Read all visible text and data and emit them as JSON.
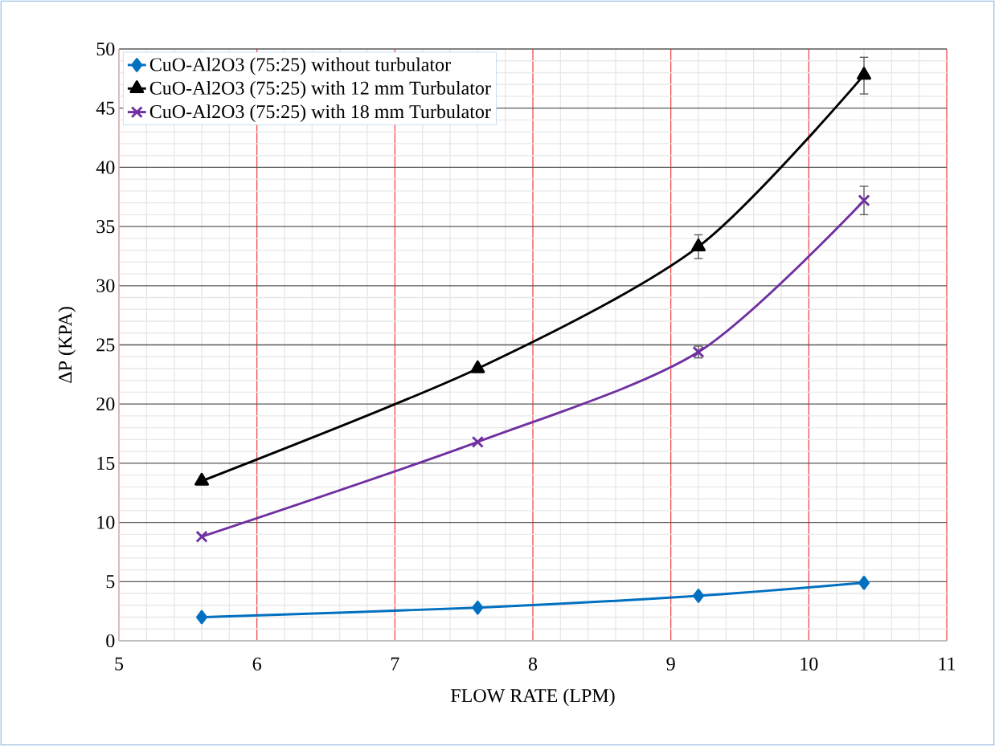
{
  "chart_data": {
    "type": "line",
    "xlabel": "FLOW RATE (LPM)",
    "ylabel": "ΔP (KPA)",
    "x": [
      5.6,
      7.6,
      9.2,
      10.4
    ],
    "series": [
      {
        "name": "CuO-Al2O3  (75:25) without turbulator",
        "color": "#0070c0",
        "marker": "diamond",
        "values": [
          2.0,
          2.8,
          3.8,
          4.9
        ]
      },
      {
        "name": "CuO-Al2O3  (75:25) with 12 mm  Turbulator",
        "color": "#000000",
        "marker": "triangle",
        "values": [
          13.5,
          23.0,
          33.3,
          47.8
        ],
        "errors": [
          null,
          null,
          [
            32.3,
            34.3
          ],
          [
            46.2,
            49.3
          ]
        ]
      },
      {
        "name": "CuO-Al2O3  (75:25) with 18 mm Turbulator",
        "color": "#7030a0",
        "marker": "cross",
        "values": [
          8.8,
          16.8,
          24.4,
          37.2
        ],
        "errors": [
          null,
          null,
          [
            23.9,
            24.9
          ],
          [
            36.0,
            38.4
          ]
        ]
      }
    ],
    "xlim": [
      5,
      11
    ],
    "xticks": [
      5,
      6,
      7,
      8,
      9,
      10,
      11
    ],
    "ylim": [
      0,
      50
    ],
    "yticks": [
      0,
      5,
      10,
      15,
      20,
      25,
      30,
      35,
      40,
      45,
      50
    ],
    "grid": true,
    "legend": "top left",
    "line_style": "solid"
  }
}
